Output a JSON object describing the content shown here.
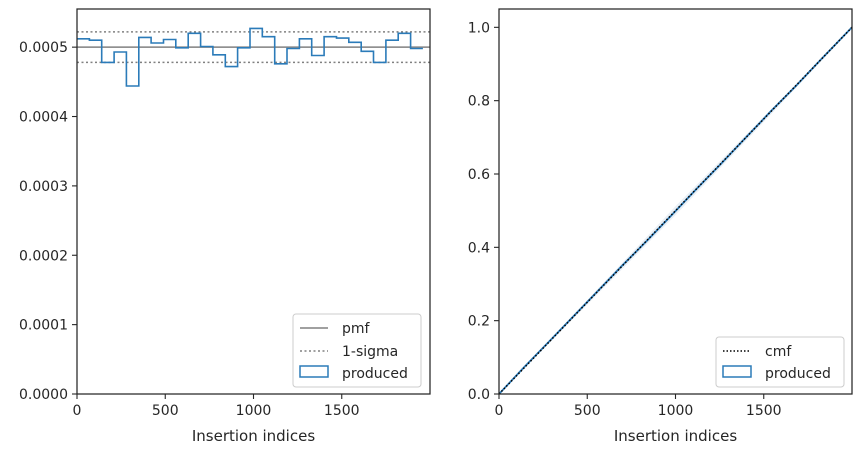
{
  "chart_data": [
    {
      "type": "line",
      "xlabel": "Insertion indices",
      "ylabel": "",
      "xlim": [
        0,
        2000
      ],
      "ylim": [
        0,
        0.000555
      ],
      "xticks": [
        0,
        500,
        1000,
        1500
      ],
      "xtick_labels": [
        "0",
        "500",
        "1000",
        "1500"
      ],
      "yticks": [
        0,
        0.0001,
        0.0002,
        0.0003,
        0.0004,
        0.0005
      ],
      "ytick_labels": [
        "0.0000",
        "0.0001",
        "0.0002",
        "0.0003",
        "0.0004",
        "0.0005"
      ],
      "grid": false,
      "legend_position": "lower-right",
      "legend": [
        "pmf",
        "1-sigma",
        "produced"
      ],
      "pmf": 0.0005,
      "sigma_band": [
        0.000478,
        0.000522
      ],
      "produced_step": {
        "edges": [
          0,
          70,
          140,
          210,
          280,
          350,
          420,
          490,
          560,
          630,
          700,
          770,
          840,
          910,
          980,
          1050,
          1120,
          1190,
          1260,
          1330,
          1400,
          1470,
          1540,
          1610,
          1680,
          1750,
          1820,
          1890,
          1960
        ],
        "values": [
          0.000512,
          0.00051,
          0.000478,
          0.000493,
          0.000444,
          0.000514,
          0.000506,
          0.000511,
          0.000499,
          0.00052,
          0.000501,
          0.000489,
          0.000472,
          0.000499,
          0.000527,
          0.000515,
          0.000476,
          0.000498,
          0.000512,
          0.000488,
          0.000515,
          0.000513,
          0.000507,
          0.000494,
          0.000478,
          0.00051,
          0.00052,
          0.000498
        ]
      },
      "colors": {
        "pmf": "#808080",
        "sigma": "#808080",
        "produced": "#2b7bb9"
      }
    },
    {
      "type": "line",
      "xlabel": "Insertion indices",
      "ylabel": "",
      "xlim": [
        0,
        2000
      ],
      "ylim": [
        0,
        1.05
      ],
      "xticks": [
        0,
        500,
        1000,
        1500
      ],
      "xtick_labels": [
        "0",
        "500",
        "1000",
        "1500"
      ],
      "yticks": [
        0,
        0.2,
        0.4,
        0.6,
        0.8,
        1.0
      ],
      "ytick_labels": [
        "0.0",
        "0.2",
        "0.4",
        "0.6",
        "0.8",
        "1.0"
      ],
      "grid": false,
      "legend_position": "lower-right",
      "legend": [
        "cmf",
        "produced"
      ],
      "cmf": {
        "x": [
          0,
          2000
        ],
        "y": [
          0,
          1
        ]
      },
      "produced": {
        "x": [
          0,
          140,
          280,
          420,
          560,
          700,
          840,
          980,
          1120,
          1260,
          1400,
          1540,
          1680,
          1820,
          2000
        ],
        "y": [
          0,
          0.072,
          0.141,
          0.211,
          0.281,
          0.351,
          0.419,
          0.489,
          0.56,
          0.629,
          0.7,
          0.771,
          0.839,
          0.91,
          1.0
        ]
      },
      "colors": {
        "cmf": "#000000",
        "produced": "#2b7bb9",
        "band": "#dbe4ee"
      }
    }
  ]
}
